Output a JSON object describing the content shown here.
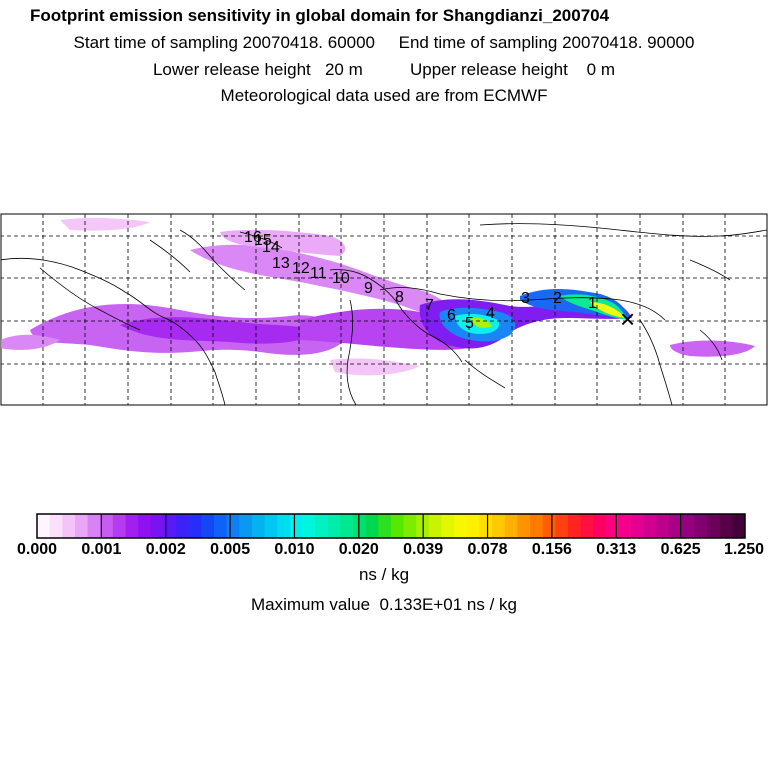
{
  "header": {
    "title": "Footprint emission sensitivity in global domain for Shangdianzi_200704",
    "line2": "Start time of sampling 20070418. 60000     End time of sampling 20070418. 90000",
    "line3": "Lower release height   20 m          Upper release height    0 m",
    "line4": "Meteorological data used are from ECMWF"
  },
  "map": {
    "receptor_marker": "×",
    "trajectory_labels": [
      "1",
      "2",
      "3",
      "4",
      "5",
      "6",
      "7",
      "8",
      "9",
      "10",
      "11",
      "12",
      "13",
      "14",
      "15",
      "16"
    ]
  },
  "colorbar": {
    "tick_labels": [
      "0.000",
      "0.001",
      "0.002",
      "0.005",
      "0.010",
      "0.020",
      "0.039",
      "0.078",
      "0.156",
      "0.313",
      "0.625",
      "1.250"
    ],
    "colors": [
      "#fff5ff",
      "#fbe0fb",
      "#f4c4f8",
      "#e9a6f7",
      "#d982f5",
      "#c65cf2",
      "#b43bf0",
      "#a31ff0",
      "#8f10f0",
      "#7a12f2",
      "#5a1af5",
      "#3d22f7",
      "#2430f7",
      "#1448f5",
      "#0e62f5",
      "#0e80f5",
      "#0a98f2",
      "#04b2f2",
      "#00c8f2",
      "#00dcf0",
      "#00f0ee",
      "#00f6dc",
      "#00f2c0",
      "#00eeaa",
      "#00e890",
      "#00e070",
      "#00d850",
      "#2ee020",
      "#58e800",
      "#7eec00",
      "#a8f000",
      "#c8f400",
      "#e2f800",
      "#f6f800",
      "#fff000",
      "#ffde00",
      "#ffc800",
      "#ffb000",
      "#ff9400",
      "#ff7a00",
      "#ff5e00",
      "#ff4010",
      "#ff2420",
      "#ff1040",
      "#ff0060",
      "#ff0080",
      "#f4008c",
      "#e40090",
      "#d00090",
      "#bc008c",
      "#a80088",
      "#940080",
      "#800070",
      "#6c005c",
      "#580048",
      "#440038"
    ],
    "unit": "ns / kg",
    "max_value_text": "Maximum value  0.133E+01 ns / kg"
  }
}
